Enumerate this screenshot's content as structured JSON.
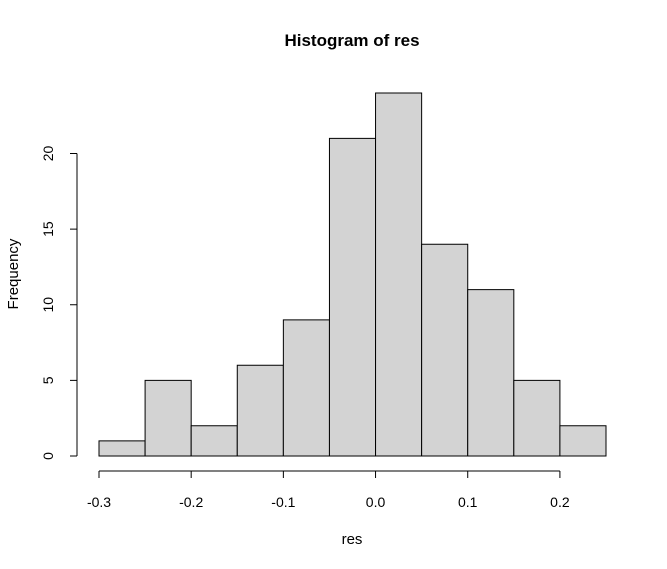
{
  "chart_data": {
    "type": "bar",
    "histogram": true,
    "title": "Histogram of res",
    "xlabel": "res",
    "ylabel": "Frequency",
    "bins": [
      {
        "from": -0.3,
        "to": -0.25,
        "count": 1
      },
      {
        "from": -0.25,
        "to": -0.2,
        "count": 5
      },
      {
        "from": -0.2,
        "to": -0.15,
        "count": 2
      },
      {
        "from": -0.15,
        "to": -0.1,
        "count": 6
      },
      {
        "from": -0.1,
        "to": -0.05,
        "count": 9
      },
      {
        "from": -0.05,
        "to": 0.0,
        "count": 21
      },
      {
        "from": 0.0,
        "to": 0.05,
        "count": 24
      },
      {
        "from": 0.05,
        "to": 0.1,
        "count": 14
      },
      {
        "from": 0.1,
        "to": 0.15,
        "count": 11
      },
      {
        "from": 0.15,
        "to": 0.2,
        "count": 5
      },
      {
        "from": 0.2,
        "to": 0.25,
        "count": 2
      }
    ],
    "xlim": [
      -0.3,
      0.25
    ],
    "ylim": [
      0,
      24
    ],
    "x_ticks": [
      -0.3,
      -0.2,
      -0.1,
      0.0,
      0.1,
      0.2
    ],
    "x_tick_labels": [
      "-0.3",
      "-0.2",
      "-0.1",
      "0.0",
      "0.1",
      "0.2"
    ],
    "y_ticks": [
      0,
      5,
      10,
      15,
      20
    ],
    "y_tick_labels": [
      "0",
      "5",
      "10",
      "15",
      "20"
    ],
    "grid": false,
    "colors": {
      "bar_fill": "#d3d3d3",
      "bar_stroke": "#000000"
    }
  }
}
